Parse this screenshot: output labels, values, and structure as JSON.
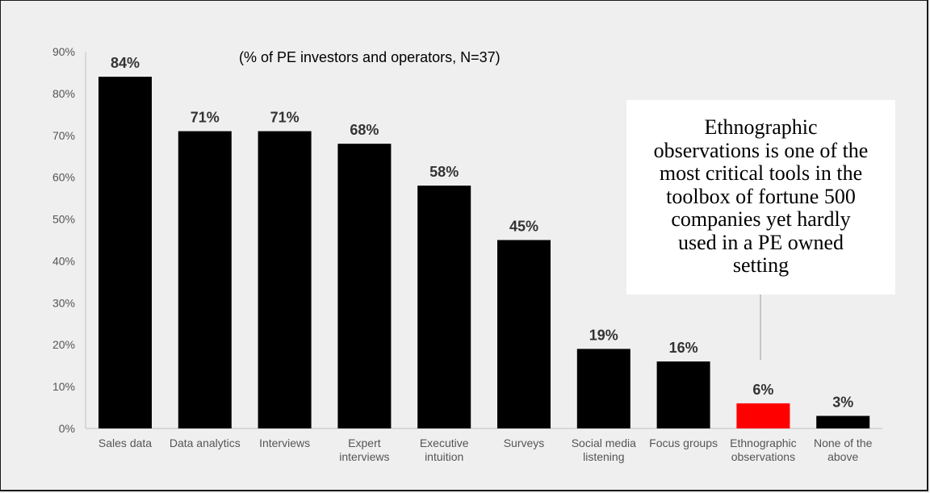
{
  "chart_data": {
    "type": "bar",
    "title": "",
    "subtitle": "(% of PE investors and operators, N=37)",
    "xlabel": "",
    "ylabel": "",
    "ylim": [
      0,
      90
    ],
    "y_ticks": [
      "0%",
      "10%",
      "20%",
      "30%",
      "40%",
      "50%",
      "60%",
      "70%",
      "80%",
      "90%"
    ],
    "grid": false,
    "legend": "none",
    "categories": [
      "Sales data",
      "Data analytics",
      "Interviews",
      "Expert interviews",
      "Executive intuition",
      "Surveys",
      "Social media listening",
      "Focus groups",
      "Ethnographic observations",
      "None of the above"
    ],
    "values": [
      84,
      71,
      71,
      68,
      58,
      45,
      19,
      16,
      6,
      3
    ],
    "data_labels": [
      "84%",
      "71%",
      "71%",
      "68%",
      "58%",
      "45%",
      "19%",
      "16%",
      "6%",
      "3%"
    ],
    "colors": {
      "default_bar": "#000000",
      "highlight_bar": "#ff0000",
      "background": "#efefef"
    },
    "highlight_category": "Ethnographic observations",
    "annotation": "Ethnographic observations is one of the most critical tools in the toolbox of fortune 500 companies yet hardly used in a PE owned setting"
  },
  "category_label_lines": [
    [
      "Sales data"
    ],
    [
      "Data analytics"
    ],
    [
      "Interviews"
    ],
    [
      "Expert",
      "interviews"
    ],
    [
      "Executive",
      "intuition"
    ],
    [
      "Surveys"
    ],
    [
      "Social media",
      "listening"
    ],
    [
      "Focus groups"
    ],
    [
      "Ethnographic",
      "observations"
    ],
    [
      "None of the",
      "above"
    ]
  ],
  "callout_lines": [
    "Ethnographic",
    "observations is one of the",
    "most critical tools in the",
    "toolbox of fortune 500",
    "companies yet hardly",
    "used in a PE owned",
    "setting"
  ]
}
